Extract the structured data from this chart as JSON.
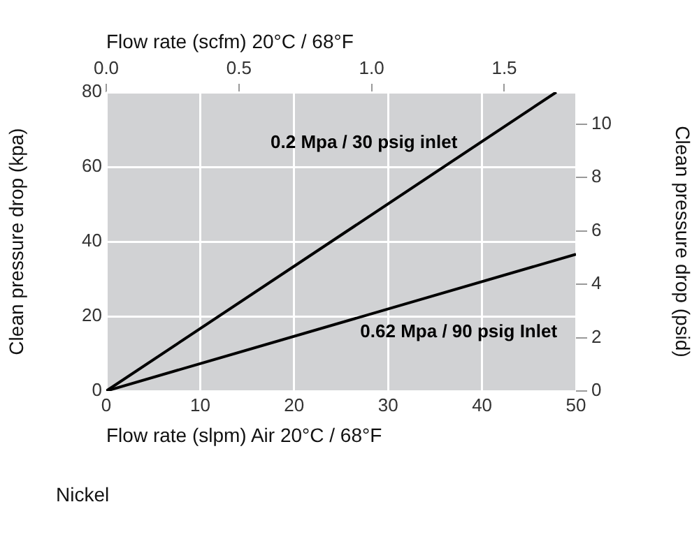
{
  "chart_data": {
    "type": "line",
    "xlabel": "Flow rate (slpm) Air 20°C / 68°F",
    "x2label": "Flow rate (scfm) 20°C / 68°F",
    "ylabel": "Clean pressure drop (kpa)",
    "y2label": "Clean pressure drop (psid)",
    "xlim": [
      0,
      50
    ],
    "xticks": [
      0,
      10,
      20,
      30,
      40,
      50
    ],
    "x2lim": [
      0,
      1.77
    ],
    "x2ticks": [
      {
        "value": 0,
        "label": "0.0"
      },
      {
        "value": 0.5,
        "label": "0.5"
      },
      {
        "value": 1,
        "label": "1.0"
      },
      {
        "value": 1.5,
        "label": "1.5"
      }
    ],
    "ylim": [
      0,
      80
    ],
    "yticks": [
      0,
      20,
      40,
      60,
      80
    ],
    "y2lim": [
      0,
      11.2
    ],
    "y2ticks": [
      0,
      2,
      4,
      6,
      8,
      10
    ],
    "grid": true,
    "series": [
      {
        "name": "0.2 Mpa / 30 psig inlet",
        "color": "#000000",
        "x": [
          0,
          47.9
        ],
        "values": [
          0,
          80
        ]
      },
      {
        "name": "0.62 Mpa / 90 psig Inlet",
        "color": "#000000",
        "x": [
          0,
          50
        ],
        "values": [
          0,
          36.6
        ]
      }
    ],
    "annotations": [
      "Nickel"
    ]
  }
}
